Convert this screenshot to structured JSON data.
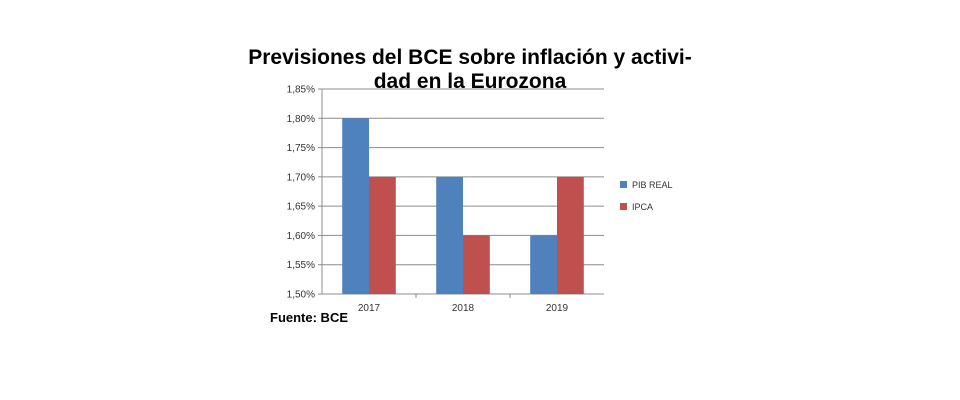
{
  "chart_data": {
    "type": "bar",
    "title_lines": [
      "Previsiones del BCE sobre inflación y activi-",
      "dad en la Eurozona"
    ],
    "categories": [
      "2017",
      "2018",
      "2019"
    ],
    "series": [
      {
        "name": "PIB REAL",
        "values": [
          1.8,
          1.7,
          1.6
        ],
        "color": "#4F81BD"
      },
      {
        "name": "IPCA",
        "values": [
          1.7,
          1.6,
          1.7
        ],
        "color": "#C0504D"
      }
    ],
    "ylim": [
      1.5,
      1.85
    ],
    "yticks": [
      "1,50%",
      "1,55%",
      "1,60%",
      "1,65%",
      "1,70%",
      "1,75%",
      "1,80%",
      "1,85%"
    ],
    "ytick_values": [
      1.5,
      1.55,
      1.6,
      1.65,
      1.7,
      1.75,
      1.8,
      1.85
    ],
    "grid": true,
    "legend_position": "right"
  },
  "source": "Fuente: BCE"
}
